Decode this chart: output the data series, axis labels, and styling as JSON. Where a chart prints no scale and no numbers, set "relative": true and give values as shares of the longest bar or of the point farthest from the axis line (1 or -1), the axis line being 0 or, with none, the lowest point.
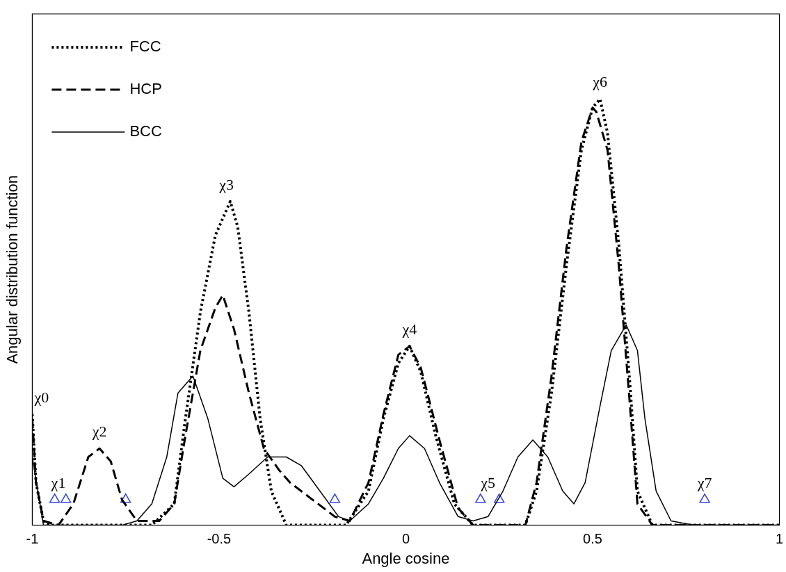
{
  "chart_data": {
    "type": "line",
    "xlabel": "Angle cosine",
    "ylabel": "Angular distribution function",
    "relative": true,
    "xlim": [
      -1,
      1
    ],
    "xticks": [
      -1,
      -0.5,
      0,
      0.5,
      1
    ],
    "tick_labels": "x",
    "grid": false,
    "legend": "top left",
    "series": [
      {
        "name": "FCC",
        "color": "#000000",
        "line_style": "dotted",
        "x": [
          -1,
          -0.99,
          -0.97,
          -0.95,
          -0.68,
          -0.62,
          -0.59,
          -0.55,
          -0.51,
          -0.47,
          -0.45,
          -0.42,
          -0.39,
          -0.36,
          -0.32,
          -0.16,
          -0.1,
          -0.06,
          -0.02,
          0.01,
          0.04,
          0.08,
          0.13,
          0.18,
          0.32,
          0.35,
          0.39,
          0.43,
          0.47,
          0.5,
          0.52,
          0.54,
          0.57,
          0.6,
          0.62,
          0.66,
          1
        ],
        "values": [
          0.26,
          0.1,
          0.01,
          0,
          0,
          0.05,
          0.25,
          0.5,
          0.68,
          0.76,
          0.7,
          0.5,
          0.25,
          0.08,
          0,
          0,
          0.08,
          0.25,
          0.38,
          0.42,
          0.36,
          0.21,
          0.05,
          0,
          0,
          0.08,
          0.31,
          0.61,
          0.88,
          0.98,
          1,
          0.92,
          0.66,
          0.33,
          0.08,
          0,
          0
        ]
      },
      {
        "name": "HCP",
        "color": "#000000",
        "line_style": "dashed",
        "x": [
          -1,
          -0.99,
          -0.97,
          -0.93,
          -0.89,
          -0.85,
          -0.82,
          -0.79,
          -0.76,
          -0.72,
          -0.66,
          -0.62,
          -0.59,
          -0.55,
          -0.51,
          -0.49,
          -0.46,
          -0.42,
          -0.38,
          -0.34,
          -0.31,
          -0.25,
          -0.19,
          -0.15,
          -0.1,
          -0.06,
          -0.02,
          0.01,
          0.04,
          0.09,
          0.14,
          0.18,
          0.32,
          0.35,
          0.39,
          0.43,
          0.47,
          0.5,
          0.51,
          0.54,
          0.57,
          0.6,
          0.62,
          0.66,
          1
        ],
        "values": [
          0.25,
          0.1,
          0.01,
          0,
          0.05,
          0.16,
          0.18,
          0.15,
          0.06,
          0.01,
          0.01,
          0.05,
          0.21,
          0.41,
          0.51,
          0.54,
          0.46,
          0.31,
          0.18,
          0.13,
          0.1,
          0.06,
          0.02,
          0.01,
          0.1,
          0.26,
          0.4,
          0.42,
          0.37,
          0.2,
          0.04,
          0,
          0,
          0.1,
          0.35,
          0.65,
          0.9,
          0.98,
          0.97,
          0.88,
          0.61,
          0.28,
          0.05,
          0,
          0
        ]
      },
      {
        "name": "BCC",
        "color": "#000000",
        "line_style": "solid",
        "x": [
          -1,
          -0.97,
          -0.76,
          -0.72,
          -0.68,
          -0.64,
          -0.61,
          -0.57,
          -0.53,
          -0.49,
          -0.46,
          -0.42,
          -0.37,
          -0.32,
          -0.28,
          -0.23,
          -0.18,
          -0.15,
          -0.1,
          -0.06,
          -0.02,
          0.01,
          0.05,
          0.09,
          0.14,
          0.18,
          0.22,
          0.26,
          0.3,
          0.34,
          0.38,
          0.42,
          0.45,
          0.48,
          0.52,
          0.55,
          0.59,
          0.62,
          0.64,
          0.67,
          0.71,
          0.77,
          1
        ],
        "values": [
          0.16,
          0,
          0,
          0.01,
          0.05,
          0.16,
          0.31,
          0.35,
          0.25,
          0.11,
          0.09,
          0.12,
          0.16,
          0.16,
          0.14,
          0.08,
          0.02,
          0.01,
          0.05,
          0.11,
          0.18,
          0.21,
          0.18,
          0.1,
          0.02,
          0.01,
          0.02,
          0.08,
          0.16,
          0.2,
          0.16,
          0.08,
          0.05,
          0.1,
          0.28,
          0.41,
          0.47,
          0.41,
          0.25,
          0.08,
          0.01,
          0,
          0
        ]
      },
      {
        "type": "scatter",
        "marker": "triangle",
        "color": "#3344dd",
        "x": [
          -0.94,
          -0.91,
          -0.75,
          -0.19,
          0.2,
          0.25,
          0.8
        ],
        "values": [
          0.06,
          0.06,
          0.06,
          0.06,
          0.06,
          0.06,
          0.06
        ]
      }
    ],
    "annotations": [
      {
        "text": "χ0",
        "x": -1,
        "y": 0.26
      },
      {
        "text": "χ1",
        "x": -0.93,
        "y": 0.06
      },
      {
        "text": "χ2",
        "x": -0.82,
        "y": 0.18
      },
      {
        "text": "χ3",
        "x": -0.48,
        "y": 0.76
      },
      {
        "text": "χ4",
        "x": 0.01,
        "y": 0.42
      },
      {
        "text": "χ5",
        "x": 0.22,
        "y": 0.06
      },
      {
        "text": "χ6",
        "x": 0.52,
        "y": 1
      },
      {
        "text": "χ7",
        "x": 0.8,
        "y": 0.06
      }
    ]
  }
}
